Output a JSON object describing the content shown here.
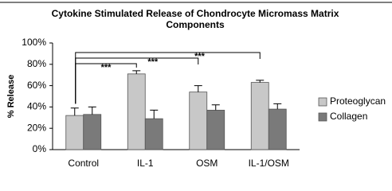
{
  "chart_data": {
    "type": "bar",
    "title": [
      "Cytokine Stimulated Release of Chondrocyte Micromass Matrix",
      "Components"
    ],
    "y_label": "% Release",
    "categories": [
      "Control",
      "IL-1",
      "OSM",
      "IL-1/OSM"
    ],
    "series": [
      {
        "name": "Proteoglycan",
        "color": "#c8c8c8",
        "values": [
          32,
          71,
          54,
          63
        ],
        "errors": [
          7,
          3,
          6,
          2
        ]
      },
      {
        "name": "Collagen",
        "color": "#7a7a7a",
        "values": [
          33,
          29,
          37,
          38
        ],
        "errors": [
          7,
          8,
          5,
          5
        ]
      }
    ],
    "ylim": [
      0,
      100
    ],
    "yticks": [
      {
        "value": 0,
        "label": "0%"
      },
      {
        "value": 20,
        "label": "20%"
      },
      {
        "value": 40,
        "label": "40%"
      },
      {
        "value": 60,
        "label": "60%"
      },
      {
        "value": 80,
        "label": "80%"
      },
      {
        "value": 100,
        "label": "100%"
      }
    ],
    "legend": "right",
    "annotations": [
      {
        "text": "***",
        "from": "Control",
        "to": "IL-1"
      },
      {
        "text": "***",
        "from": "Control",
        "to": "OSM"
      },
      {
        "text": "***",
        "from": "Control",
        "to": "IL-1/OSM"
      }
    ]
  }
}
